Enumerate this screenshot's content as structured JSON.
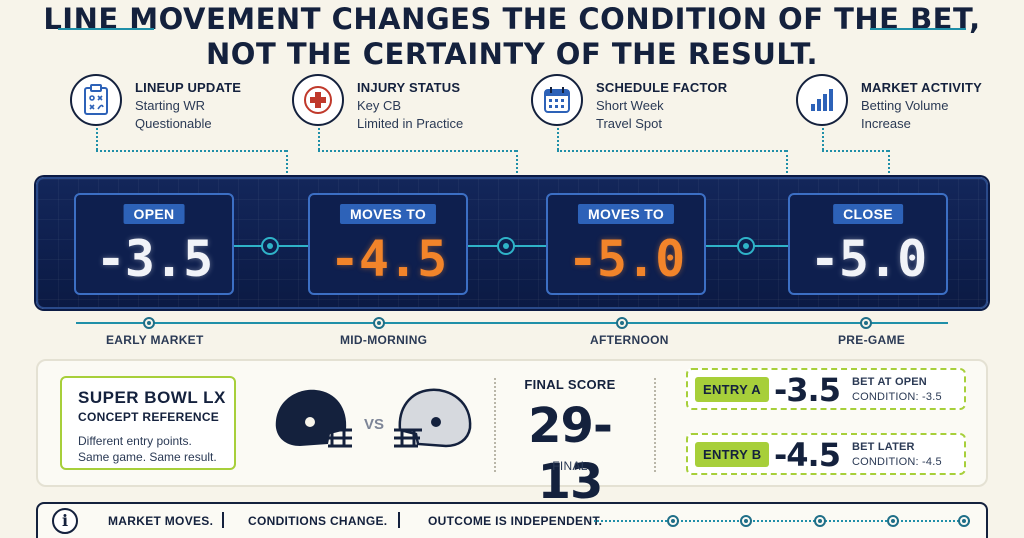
{
  "headline": {
    "line1": "Line movement changes the condition of the bet,",
    "line2": "not the certainty of the result."
  },
  "factors": [
    {
      "icon": "clipboard-icon",
      "title": "LINEUP UPDATE",
      "line1": "Starting WR",
      "line2": "Questionable"
    },
    {
      "icon": "medical-cross-icon",
      "title": "INJURY STATUS",
      "line1": "Key CB",
      "line2": "Limited in Practice"
    },
    {
      "icon": "calendar-icon",
      "title": "SCHEDULE FACTOR",
      "line1": "Short Week",
      "line2": "Travel Spot"
    },
    {
      "icon": "bar-chart-icon",
      "title": "MARKET ACTIVITY",
      "line1": "Betting Volume",
      "line2": "Increase"
    }
  ],
  "board": [
    {
      "label": "OPEN",
      "value": "-3.5",
      "color": "#f1f3f8"
    },
    {
      "label": "MOVES TO",
      "value": "-4.5",
      "color": "#f2842a"
    },
    {
      "label": "MOVES TO",
      "value": "-5.0",
      "color": "#f2842a"
    },
    {
      "label": "CLOSE",
      "value": "-5.0",
      "color": "#f1f3f8"
    }
  ],
  "timeline": [
    "EARLY MARKET",
    "MID-MORNING",
    "AFTERNOON",
    "PRE-GAME"
  ],
  "concept": {
    "title": "SUPER BOWL LX",
    "subtitle": "CONCEPT REFERENCE",
    "line1": "Different entry points.",
    "line2": "Same game. Same result."
  },
  "matchup": {
    "vs": "VS",
    "home_color": "#14213d",
    "away_color": "#d6d9de"
  },
  "final": {
    "label": "FINAL SCORE",
    "score": "29-13",
    "status": "FINAL"
  },
  "entries": [
    {
      "tag": "ENTRY A",
      "value": "-3.5",
      "line1": "BET AT OPEN",
      "line2": "CONDITION: -3.5"
    },
    {
      "tag": "ENTRY B",
      "value": "-4.5",
      "line1": "BET LATER",
      "line2": "CONDITION: -4.5"
    }
  ],
  "footer": {
    "icon": "info-icon",
    "icon_glyph": "i",
    "items": [
      "MARKET MOVES.",
      "CONDITIONS CHANGE.",
      "OUTCOME IS INDEPENDENT."
    ]
  },
  "colors": {
    "accent": "#1f8fa8",
    "navy": "#14213d",
    "lime": "#a7cf3a",
    "orange": "#f2842a"
  }
}
